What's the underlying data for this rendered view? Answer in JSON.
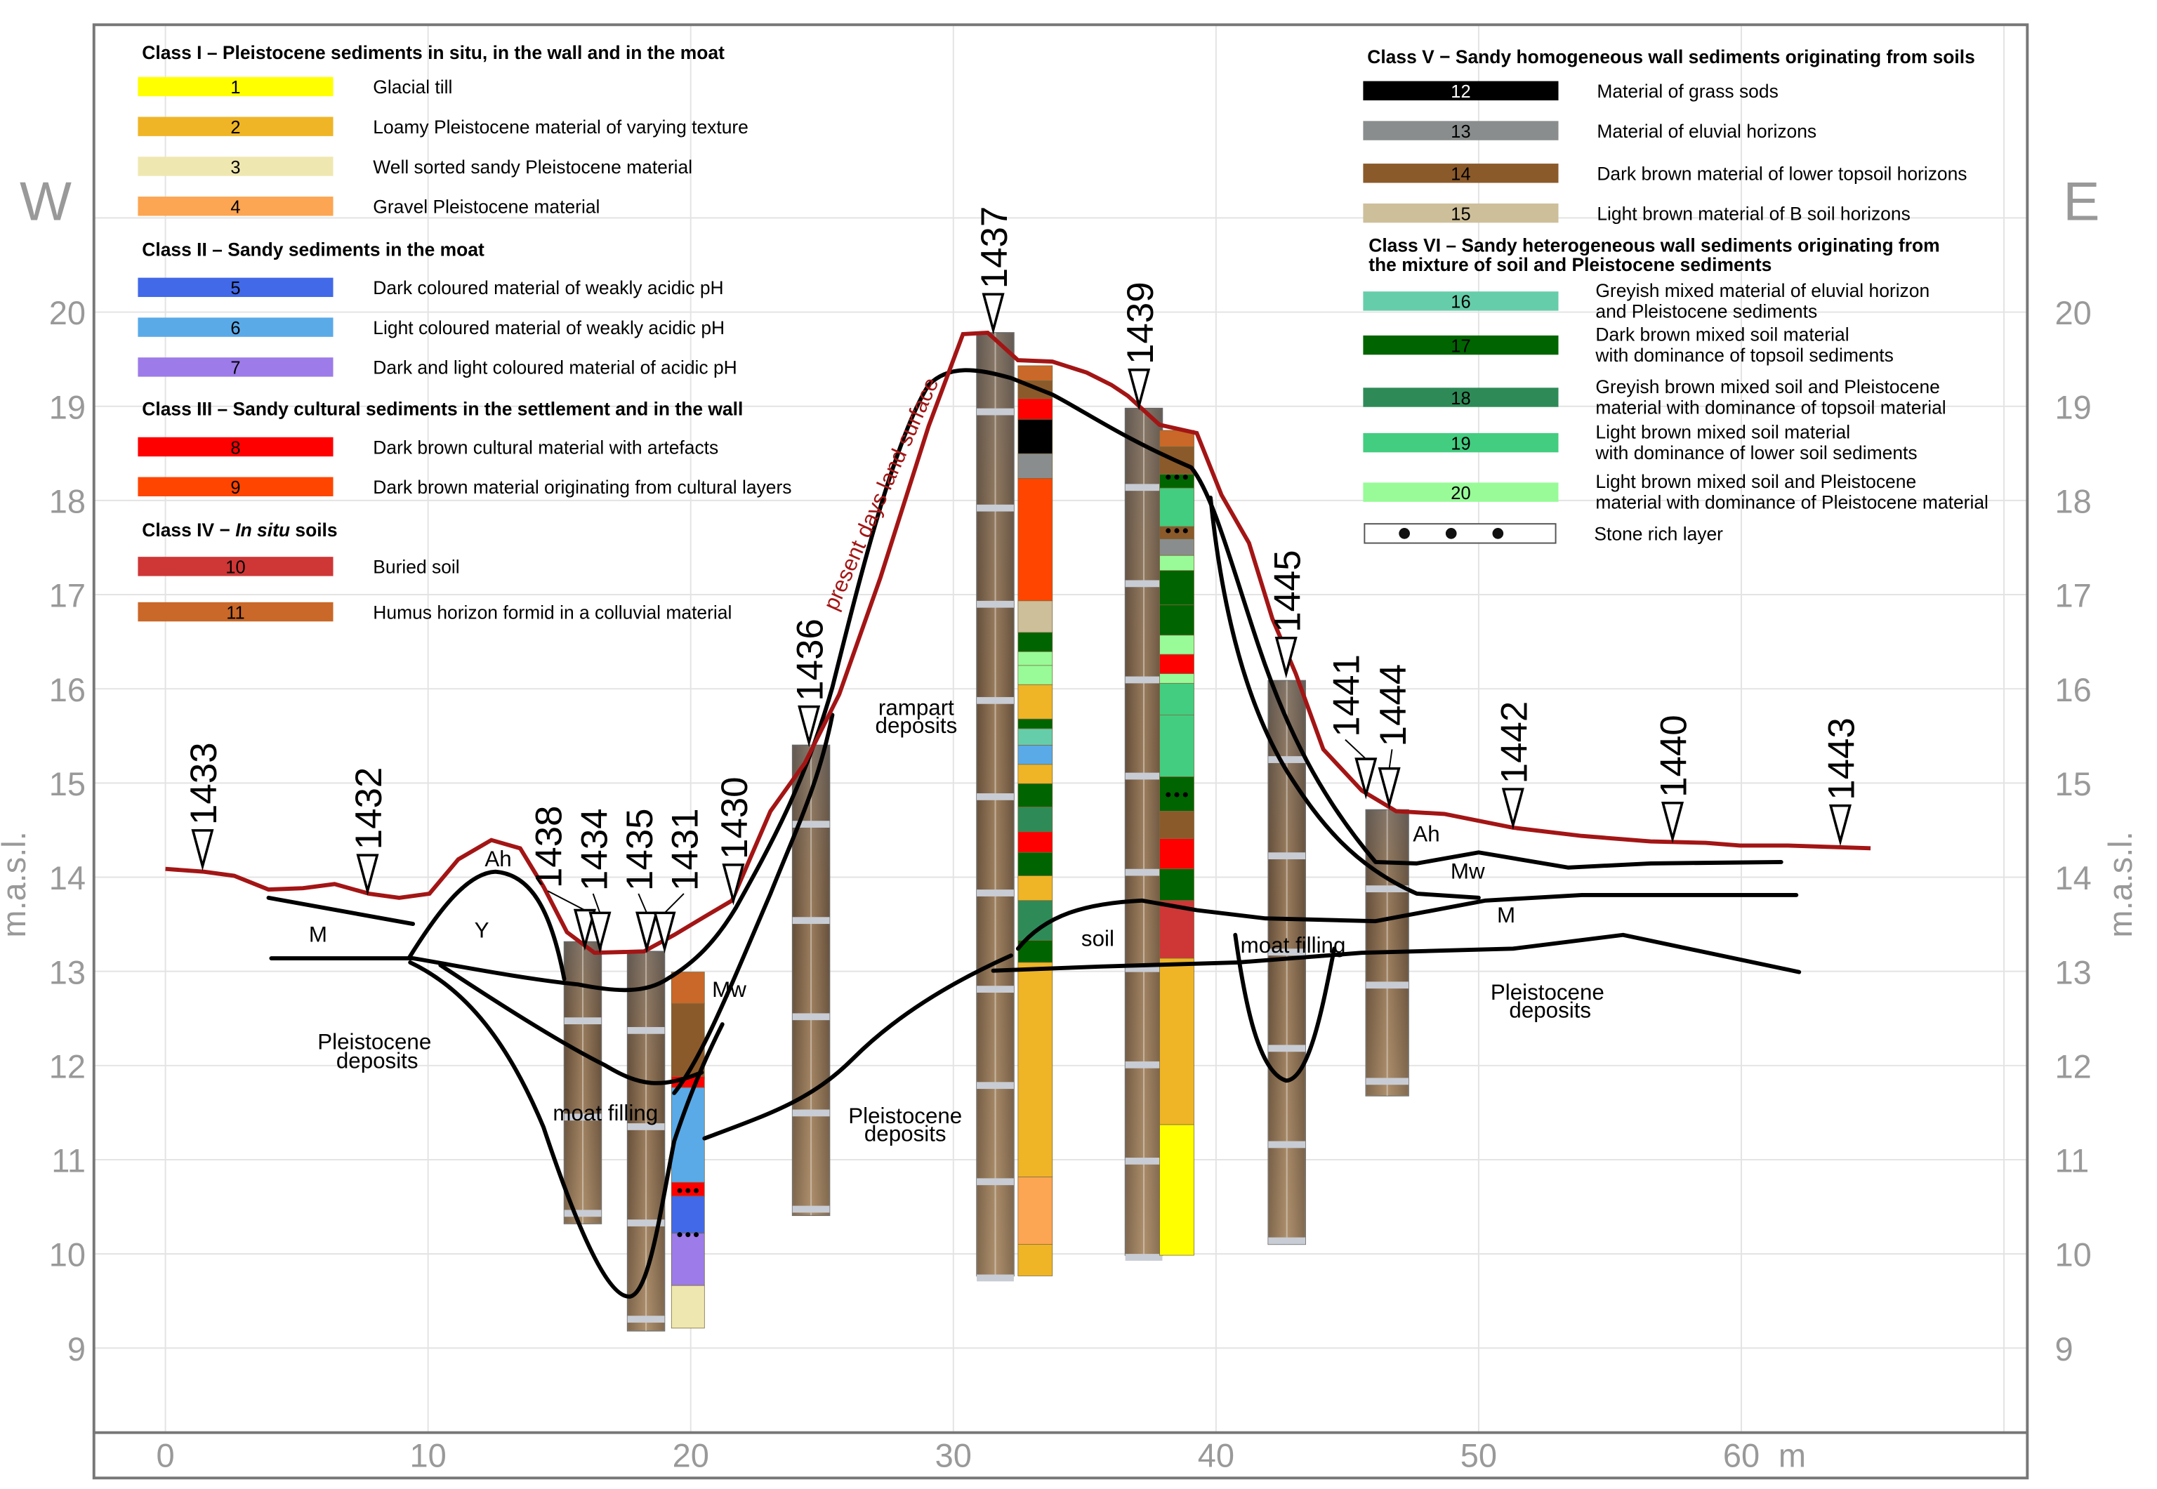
{
  "directions": {
    "west": "W",
    "east": "E"
  },
  "y_axis": {
    "label": "m.a.s.l.",
    "ticks": [
      "20",
      "19",
      "18",
      "17",
      "16",
      "15",
      "14",
      "13",
      "12",
      "11",
      "10",
      "9"
    ]
  },
  "x_axis": {
    "ticks": [
      "0",
      "10",
      "20",
      "30",
      "40",
      "50",
      "60"
    ],
    "unit": "m"
  },
  "legend_left": {
    "class1": {
      "header": "Class I – Pleistocene sediments in situ, in the wall and in the moat",
      "items": [
        {
          "code": "1",
          "color": "#ffff00",
          "label": "Glacial till"
        },
        {
          "code": "2",
          "color": "#efb526",
          "label": "Loamy Pleistocene material of varying texture"
        },
        {
          "code": "3",
          "color": "#efe7b0",
          "label": "Well sorted sandy Pleistocene material"
        },
        {
          "code": "4",
          "color": "#fca552",
          "label": "Gravel Pleistocene material"
        }
      ]
    },
    "class2": {
      "header": "Class II – Sandy sediments in the moat",
      "items": [
        {
          "code": "5",
          "color": "#4169e8",
          "label": "Dark coloured material of weakly acidic pH"
        },
        {
          "code": "6",
          "color": "#5aaae8",
          "label": "Light coloured material of weakly acidic pH"
        },
        {
          "code": "7",
          "color": "#9d7be8",
          "label": "Dark and light coloured material of acidic pH"
        }
      ]
    },
    "class3": {
      "header": "Class III – Sandy cultural sediments in the settlement and in the wall",
      "items": [
        {
          "code": "8",
          "color": "#ff0000",
          "label": "Dark brown cultural material with artefacts"
        },
        {
          "code": "9",
          "color": "#ff4500",
          "label": "Dark brown material originating from cultural layers"
        }
      ]
    },
    "class4": {
      "header_pre": "Class IV − ",
      "header_italic": "In situ",
      "header_post": " soils",
      "items": [
        {
          "code": "10",
          "color": "#cf3636",
          "label": "Buried soil"
        },
        {
          "code": "11",
          "color": "#c96828",
          "label": "Humus horizon formid in a colluvial material"
        }
      ]
    }
  },
  "legend_right": {
    "class5": {
      "header": "Class V − Sandy homogeneous wall sediments originating from soils",
      "items": [
        {
          "code": "12",
          "color": "#000000",
          "label": "Material of grass sods"
        },
        {
          "code": "13",
          "color": "#8a8d8d",
          "label": "Material of eluvial horizons"
        },
        {
          "code": "14",
          "color": "#8b5a2b",
          "label": "Dark brown material of lower topsoil horizons"
        },
        {
          "code": "15",
          "color": "#cdbf9a",
          "label": "Light brown material of B soil horizons"
        }
      ]
    },
    "class6": {
      "header_line1": "Class VI – Sandy heterogeneous wall sediments originating from",
      "header_line2": "the mixture of soil and Pleistocene sediments",
      "items": [
        {
          "code": "16",
          "color": "#66cdaa",
          "label1": "Greyish mixed material of eluvial horizon",
          "label2": "and Pleistocene sediments"
        },
        {
          "code": "17",
          "color": "#006400",
          "label1": "Dark brown mixed soil material",
          "label2": "with dominance of topsoil sediments"
        },
        {
          "code": "18",
          "color": "#2e8b57",
          "label1": "Greyish brown mixed soil and Pleistocene",
          "label2": "material with dominance of topsoil material"
        },
        {
          "code": "19",
          "color": "#43cd80",
          "label1": "Light brown mixed soil material",
          "label2": "with dominance of lower soil sediments"
        },
        {
          "code": "20",
          "color": "#98fb98",
          "label1": "Light brown mixed soil and Pleistocene",
          "label2": "material with dominance of Pleistocene material"
        }
      ]
    },
    "stone": {
      "label": "Stone rich layer",
      "icon": "stone-dots"
    }
  },
  "surface_label": "present days land surface",
  "surface_color": "#a31515",
  "boreholes": [
    "1433",
    "1432",
    "1438",
    "1434",
    "1435",
    "1431",
    "1430",
    "1436",
    "1437",
    "1439",
    "1445",
    "1441",
    "1444",
    "1442",
    "1440",
    "1443"
  ],
  "units": {
    "ah_left": "Ah",
    "m_left": "M",
    "y": "Y",
    "pleist_left_1": "Pleistocene",
    "pleist_left_2": "deposits",
    "moat_left": "moat filling",
    "mw_left": "Mw",
    "rampart_1": "rampart",
    "rampart_2": "deposits",
    "pleist_mid_1": "Pleistocene",
    "pleist_mid_2": "deposits",
    "soil": "soil",
    "moat_right": "moat filling",
    "ah_right": "Ah",
    "mw_right": "Mw",
    "m_right": "M",
    "pleist_right_1": "Pleistocene",
    "pleist_right_2": "deposits"
  }
}
